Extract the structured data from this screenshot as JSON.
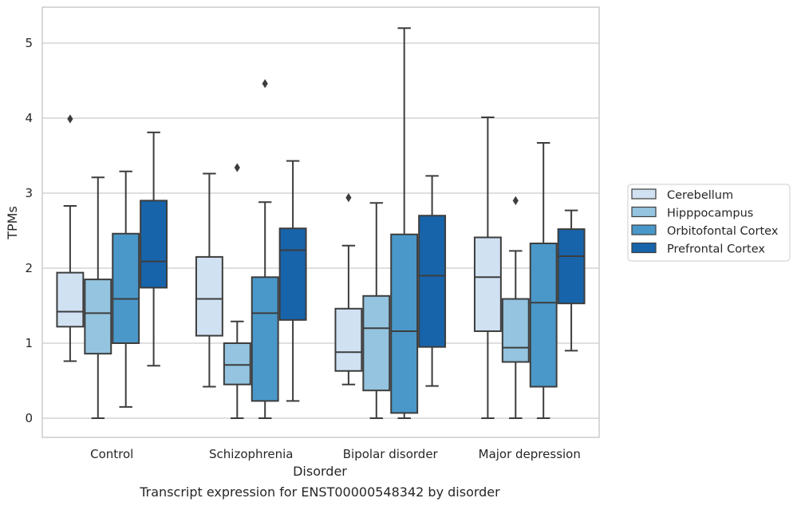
{
  "chart_data": {
    "type": "box",
    "title": "",
    "caption": "Transcript expression for ENST00000548342 by disorder",
    "xlabel": "Disorder",
    "ylabel": "TPMs",
    "ylim": [
      -0.25,
      5.5
    ],
    "yticks": [
      "0",
      "1",
      "2",
      "3",
      "4",
      "5"
    ],
    "categories": [
      "Control",
      "Schizophrenia",
      "Bipolar disorder",
      "Major depression"
    ],
    "grid": "horizontal",
    "legend_position": "right",
    "series": [
      {
        "name": "Cerebellum",
        "color": "#d0e1f2",
        "boxes": [
          {
            "whisker_low": 0.76,
            "q1": 1.22,
            "median": 1.42,
            "q3": 1.94,
            "whisker_high": 2.83,
            "outliers": [
              3.99
            ]
          },
          {
            "whisker_low": 0.42,
            "q1": 1.1,
            "median": 1.59,
            "q3": 2.15,
            "whisker_high": 3.26,
            "outliers": []
          },
          {
            "whisker_low": 0.45,
            "q1": 0.63,
            "median": 0.88,
            "q3": 1.46,
            "whisker_high": 2.3,
            "outliers": [
              2.94
            ]
          },
          {
            "whisker_low": 0.0,
            "q1": 1.16,
            "median": 1.88,
            "q3": 2.41,
            "whisker_high": 4.01,
            "outliers": []
          }
        ]
      },
      {
        "name": "Hipppocampus",
        "color": "#94c4df",
        "boxes": [
          {
            "whisker_low": 0.0,
            "q1": 0.86,
            "median": 1.4,
            "q3": 1.85,
            "whisker_high": 3.21,
            "outliers": []
          },
          {
            "whisker_low": 0.0,
            "q1": 0.45,
            "median": 0.71,
            "q3": 1.0,
            "whisker_high": 1.29,
            "outliers": [
              3.34
            ]
          },
          {
            "whisker_low": 0.0,
            "q1": 0.37,
            "median": 1.2,
            "q3": 1.63,
            "whisker_high": 2.87,
            "outliers": []
          },
          {
            "whisker_low": 0.0,
            "q1": 0.75,
            "median": 0.94,
            "q3": 1.59,
            "whisker_high": 2.23,
            "outliers": [
              2.9
            ]
          }
        ]
      },
      {
        "name": "Orbitofontal Cortex",
        "color": "#4a98c9",
        "boxes": [
          {
            "whisker_low": 0.15,
            "q1": 1.0,
            "median": 1.59,
            "q3": 2.46,
            "whisker_high": 3.29,
            "outliers": []
          },
          {
            "whisker_low": 0.0,
            "q1": 0.23,
            "median": 1.4,
            "q3": 1.88,
            "whisker_high": 2.88,
            "outliers": [
              4.46
            ]
          },
          {
            "whisker_low": 0.0,
            "q1": 0.07,
            "median": 1.16,
            "q3": 2.45,
            "whisker_high": 5.2,
            "outliers": []
          },
          {
            "whisker_low": 0.0,
            "q1": 0.42,
            "median": 1.54,
            "q3": 2.33,
            "whisker_high": 3.67,
            "outliers": []
          }
        ]
      },
      {
        "name": "Prefrontal Cortex",
        "color": "#1764ab",
        "boxes": [
          {
            "whisker_low": 0.7,
            "q1": 1.74,
            "median": 2.09,
            "q3": 2.9,
            "whisker_high": 3.81,
            "outliers": []
          },
          {
            "whisker_low": 0.23,
            "q1": 1.31,
            "median": 2.24,
            "q3": 2.53,
            "whisker_high": 3.43,
            "outliers": []
          },
          {
            "whisker_low": 0.43,
            "q1": 0.95,
            "median": 1.9,
            "q3": 2.7,
            "whisker_high": 3.23,
            "outliers": []
          },
          {
            "whisker_low": 0.9,
            "q1": 1.53,
            "median": 2.16,
            "q3": 2.52,
            "whisker_high": 2.77,
            "outliers": []
          }
        ]
      }
    ]
  }
}
